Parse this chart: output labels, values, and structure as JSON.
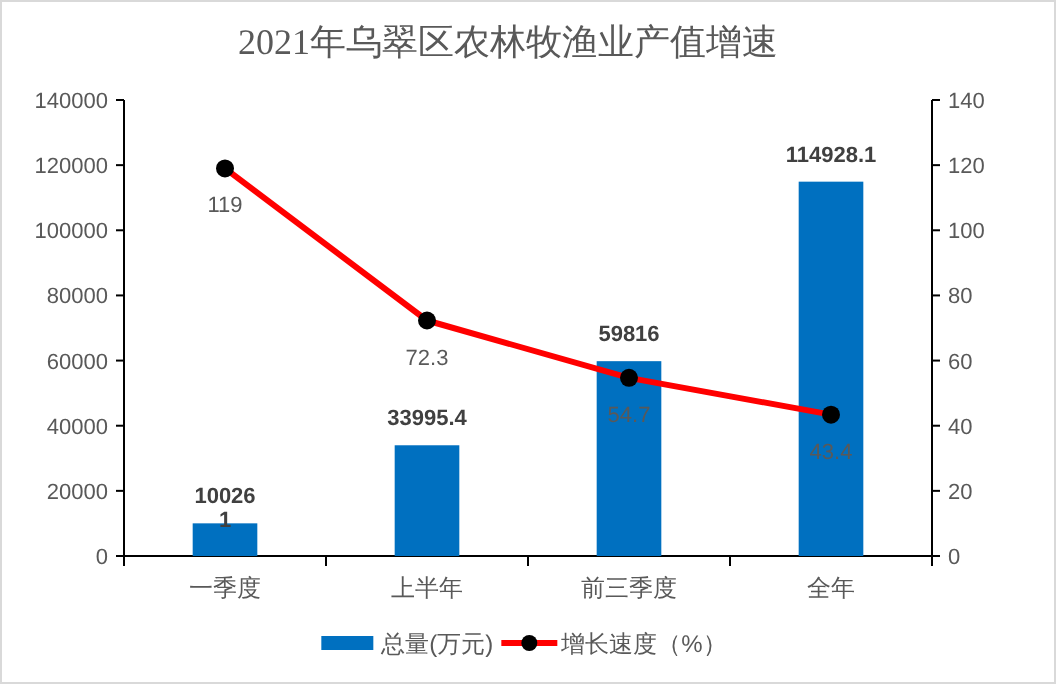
{
  "chart_data": {
    "type": "bar",
    "title": "2021年乌翠区农林牧渔业产值增速",
    "categories": [
      "一季度",
      "上半年",
      "前三季度",
      "全年"
    ],
    "series": [
      {
        "name": "总量(万元)",
        "color": "#0070c0",
        "values": [
          10026,
          33995.4,
          59816,
          114928.1
        ],
        "value_labels": [
          "10026",
          "33995.4",
          "59816",
          "114928.1"
        ]
      },
      {
        "name": "增长速度（%）",
        "type": "line",
        "axis": "y2",
        "color": "#ff0000",
        "marker": "circle",
        "values": [
          119,
          72.3,
          54.7,
          43.4
        ],
        "value_labels": [
          "119",
          "72.3",
          "54.7",
          "43.4"
        ]
      }
    ],
    "ylim": [
      0,
      140000
    ],
    "yticks": [
      0,
      20000,
      40000,
      60000,
      80000,
      100000,
      120000,
      140000
    ],
    "y2lim": [
      0,
      140
    ],
    "y2ticks": [
      0,
      20,
      40,
      60,
      80,
      100,
      120,
      140
    ],
    "grid": false,
    "legend": "bottom",
    "annotations": [
      "1"
    ]
  }
}
